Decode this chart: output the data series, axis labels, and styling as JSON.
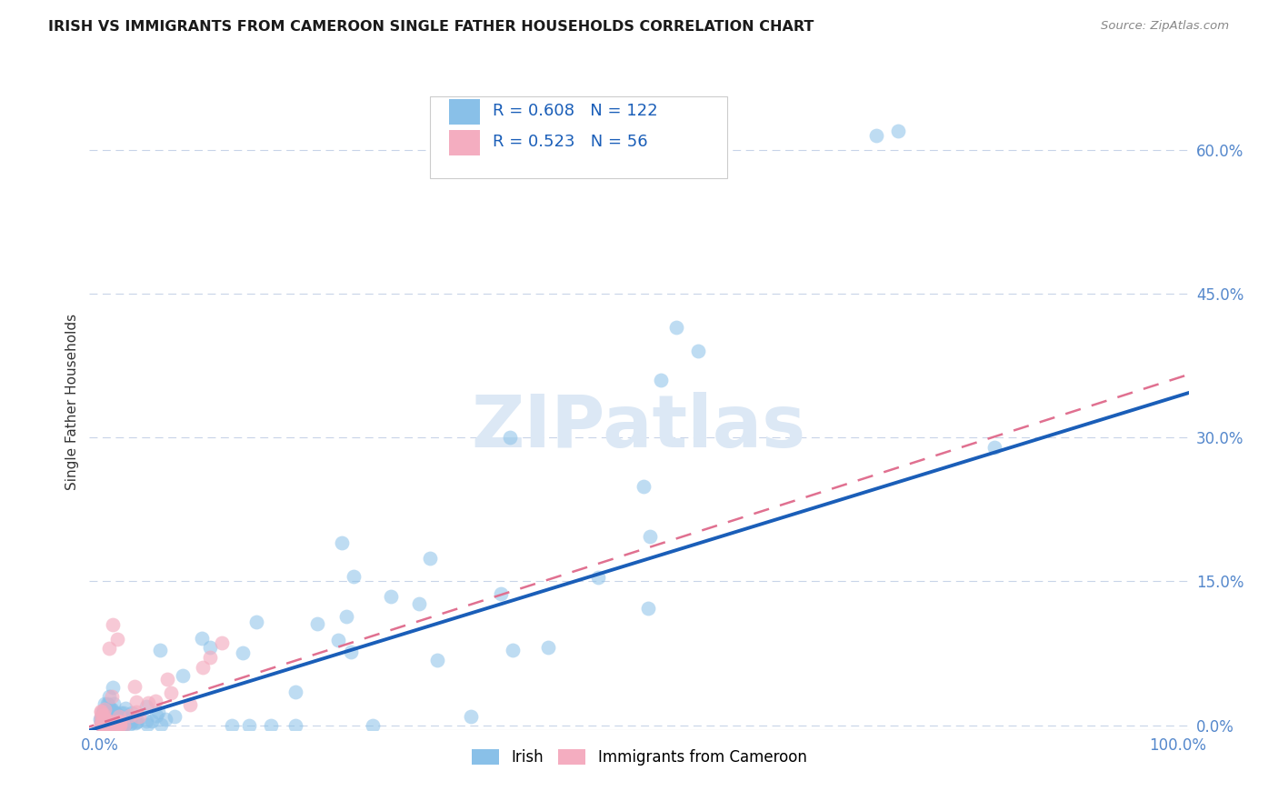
{
  "title": "IRISH VS IMMIGRANTS FROM CAMEROON SINGLE FATHER HOUSEHOLDS CORRELATION CHART",
  "source": "Source: ZipAtlas.com",
  "ylabel": "Single Father Households",
  "xlim": [
    -0.01,
    1.01
  ],
  "ylim": [
    -0.005,
    0.68
  ],
  "xtick_positions": [
    0.0,
    1.0
  ],
  "xticklabels": [
    "0.0%",
    "100.0%"
  ],
  "ytick_positions": [
    0.0,
    0.15,
    0.3,
    0.45,
    0.6
  ],
  "yticklabels": [
    "0.0%",
    "15.0%",
    "30.0%",
    "45.0%",
    "60.0%"
  ],
  "irish_color": "#89c0e8",
  "cameroon_color": "#f4adc0",
  "irish_line_color": "#1a5eb8",
  "cameroon_line_color": "#e07090",
  "legend_R_irish": "R = 0.608",
  "legend_N_irish": "N = 122",
  "legend_R_cameroon": "R = 0.523",
  "legend_N_cameroon": "N = 56",
  "watermark": "ZIPatlas",
  "background_color": "#ffffff",
  "grid_color": "#c8d4e8",
  "title_color": "#1a1a1a",
  "source_color": "#888888",
  "tick_color": "#5588cc",
  "ylabel_color": "#333333"
}
